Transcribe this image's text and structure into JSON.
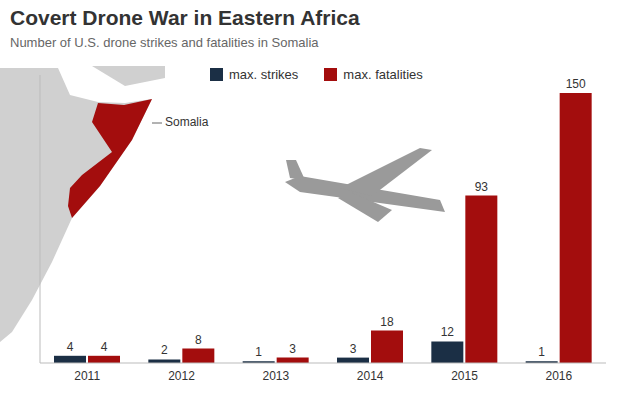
{
  "chart_data": {
    "type": "bar",
    "title": "Covert Drone War in Eastern Africa",
    "subtitle": "Number of U.S. drone strikes and fatalities in Somalia",
    "annotations": [
      "Somalia"
    ],
    "categories": [
      "2011",
      "2012",
      "2013",
      "2014",
      "2015",
      "2016"
    ],
    "series": [
      {
        "name": "max. strikes",
        "color": "#1b2f45",
        "values": [
          4,
          2,
          1,
          3,
          12,
          1
        ]
      },
      {
        "name": "max. fatalities",
        "color": "#a30d0d",
        "values": [
          4,
          8,
          3,
          18,
          93,
          150
        ]
      }
    ],
    "ylim": [
      0,
      160
    ],
    "data_labels": true,
    "legend": "top",
    "tick_labels": "x",
    "grid": false
  }
}
